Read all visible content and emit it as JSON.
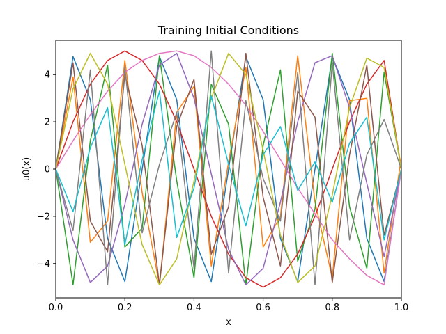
{
  "chart_data": {
    "type": "line",
    "title": "Training Initial Conditions",
    "xlabel": "x",
    "ylabel": "u0(x)",
    "xlim": [
      0.0,
      1.0
    ],
    "ylim": [
      -5.45,
      5.45
    ],
    "x_ticks": [
      0.0,
      0.2,
      0.4,
      0.6,
      0.8,
      1.0
    ],
    "x_tick_labels": [
      "0.0",
      "0.2",
      "0.4",
      "0.6",
      "0.8",
      "1.0"
    ],
    "y_ticks": [
      -4,
      -2,
      0,
      2,
      4
    ],
    "y_tick_labels": [
      "−4",
      "−2",
      "0",
      "2",
      "4"
    ],
    "grid": false,
    "legend": "none",
    "x": [
      0.0,
      0.05,
      0.1,
      0.15,
      0.2,
      0.25,
      0.3,
      0.35,
      0.4,
      0.45,
      0.5,
      0.55,
      0.6,
      0.65,
      0.7,
      0.75,
      0.8,
      0.85,
      0.9,
      0.95,
      1.0
    ],
    "series_note": "Many overlapping sinusoidal initial-condition curves with amplitudes up to 5.",
    "series": [
      {
        "color": "#1f77b4",
        "values": [
          0.0,
          4.76,
          2.94,
          -2.94,
          -4.76,
          0.0,
          4.76,
          2.94,
          -2.94,
          -4.76,
          0.0,
          4.76,
          2.94,
          -2.94,
          -4.76,
          0.0,
          4.76,
          2.94,
          -2.94,
          -4.76,
          0.0
        ]
      },
      {
        "color": "#ff7f0e",
        "values": [
          0.0,
          3.9,
          -3.1,
          -2.2,
          4.6,
          -1.0,
          -4.9,
          2.4,
          3.5,
          -4.1,
          0.3,
          4.3,
          -3.3,
          -2.0,
          4.8,
          -1.4,
          -4.6,
          2.9,
          3.0,
          -4.4,
          0.5
        ]
      },
      {
        "color": "#2ca02c",
        "values": [
          0.0,
          -4.9,
          1.2,
          4.4,
          -3.3,
          -2.5,
          4.8,
          -0.5,
          -4.6,
          3.6,
          1.9,
          -4.9,
          1.0,
          4.2,
          -3.9,
          -1.7,
          4.9,
          -1.6,
          -4.2,
          4.1,
          0.0
        ]
      },
      {
        "color": "#d62728",
        "values": [
          0.0,
          2.0,
          3.6,
          4.6,
          5.0,
          4.6,
          3.6,
          2.0,
          0.0,
          -2.0,
          -3.6,
          -4.6,
          -5.0,
          -4.6,
          -3.6,
          -2.0,
          0.0,
          2.0,
          3.6,
          4.6,
          0.0
        ]
      },
      {
        "color": "#9467bd",
        "values": [
          0.0,
          -3.0,
          -4.8,
          -4.1,
          -1.5,
          1.9,
          4.4,
          4.9,
          3.0,
          -0.2,
          -3.4,
          -4.9,
          -4.2,
          -1.4,
          2.0,
          4.5,
          4.8,
          2.6,
          -0.6,
          -3.7,
          0.0
        ]
      },
      {
        "color": "#8c564b",
        "values": [
          0.0,
          4.5,
          -2.2,
          -3.5,
          4.0,
          1.0,
          -4.9,
          1.8,
          3.8,
          -3.6,
          -1.6,
          4.9,
          -1.2,
          -4.1,
          3.3,
          2.2,
          -4.8,
          0.6,
          4.4,
          -2.8,
          0.0
        ]
      },
      {
        "color": "#e377c2",
        "values": [
          0.0,
          1.2,
          2.3,
          3.3,
          4.1,
          4.6,
          4.9,
          5.0,
          4.8,
          4.3,
          3.6,
          2.7,
          1.6,
          0.4,
          -0.8,
          -1.9,
          -3.0,
          -3.8,
          -4.5,
          -4.9,
          0.0
        ]
      },
      {
        "color": "#7f7f7f",
        "values": [
          0.0,
          -2.6,
          4.2,
          -4.9,
          4.3,
          -2.7,
          0.2,
          2.4,
          -4.2,
          5.0,
          -4.4,
          2.9,
          -0.4,
          -2.2,
          4.1,
          -4.9,
          4.5,
          -3.0,
          0.6,
          2.1,
          0.0
        ]
      },
      {
        "color": "#bcbd22",
        "values": [
          0.0,
          3.4,
          4.9,
          3.6,
          0.2,
          -3.2,
          -4.9,
          -3.8,
          -0.5,
          3.0,
          4.9,
          4.0,
          0.8,
          -2.8,
          -4.8,
          -4.1,
          -1.1,
          2.6,
          4.7,
          4.3,
          0.0
        ]
      },
      {
        "color": "#17becf",
        "values": [
          0.0,
          -1.8,
          0.9,
          2.6,
          -3.2,
          0.4,
          3.3,
          -2.9,
          -0.8,
          3.1,
          0.2,
          -2.4,
          0.6,
          1.8,
          -0.9,
          0.3,
          -1.4,
          1.1,
          2.2,
          -3.0,
          0.0
        ]
      }
    ]
  }
}
